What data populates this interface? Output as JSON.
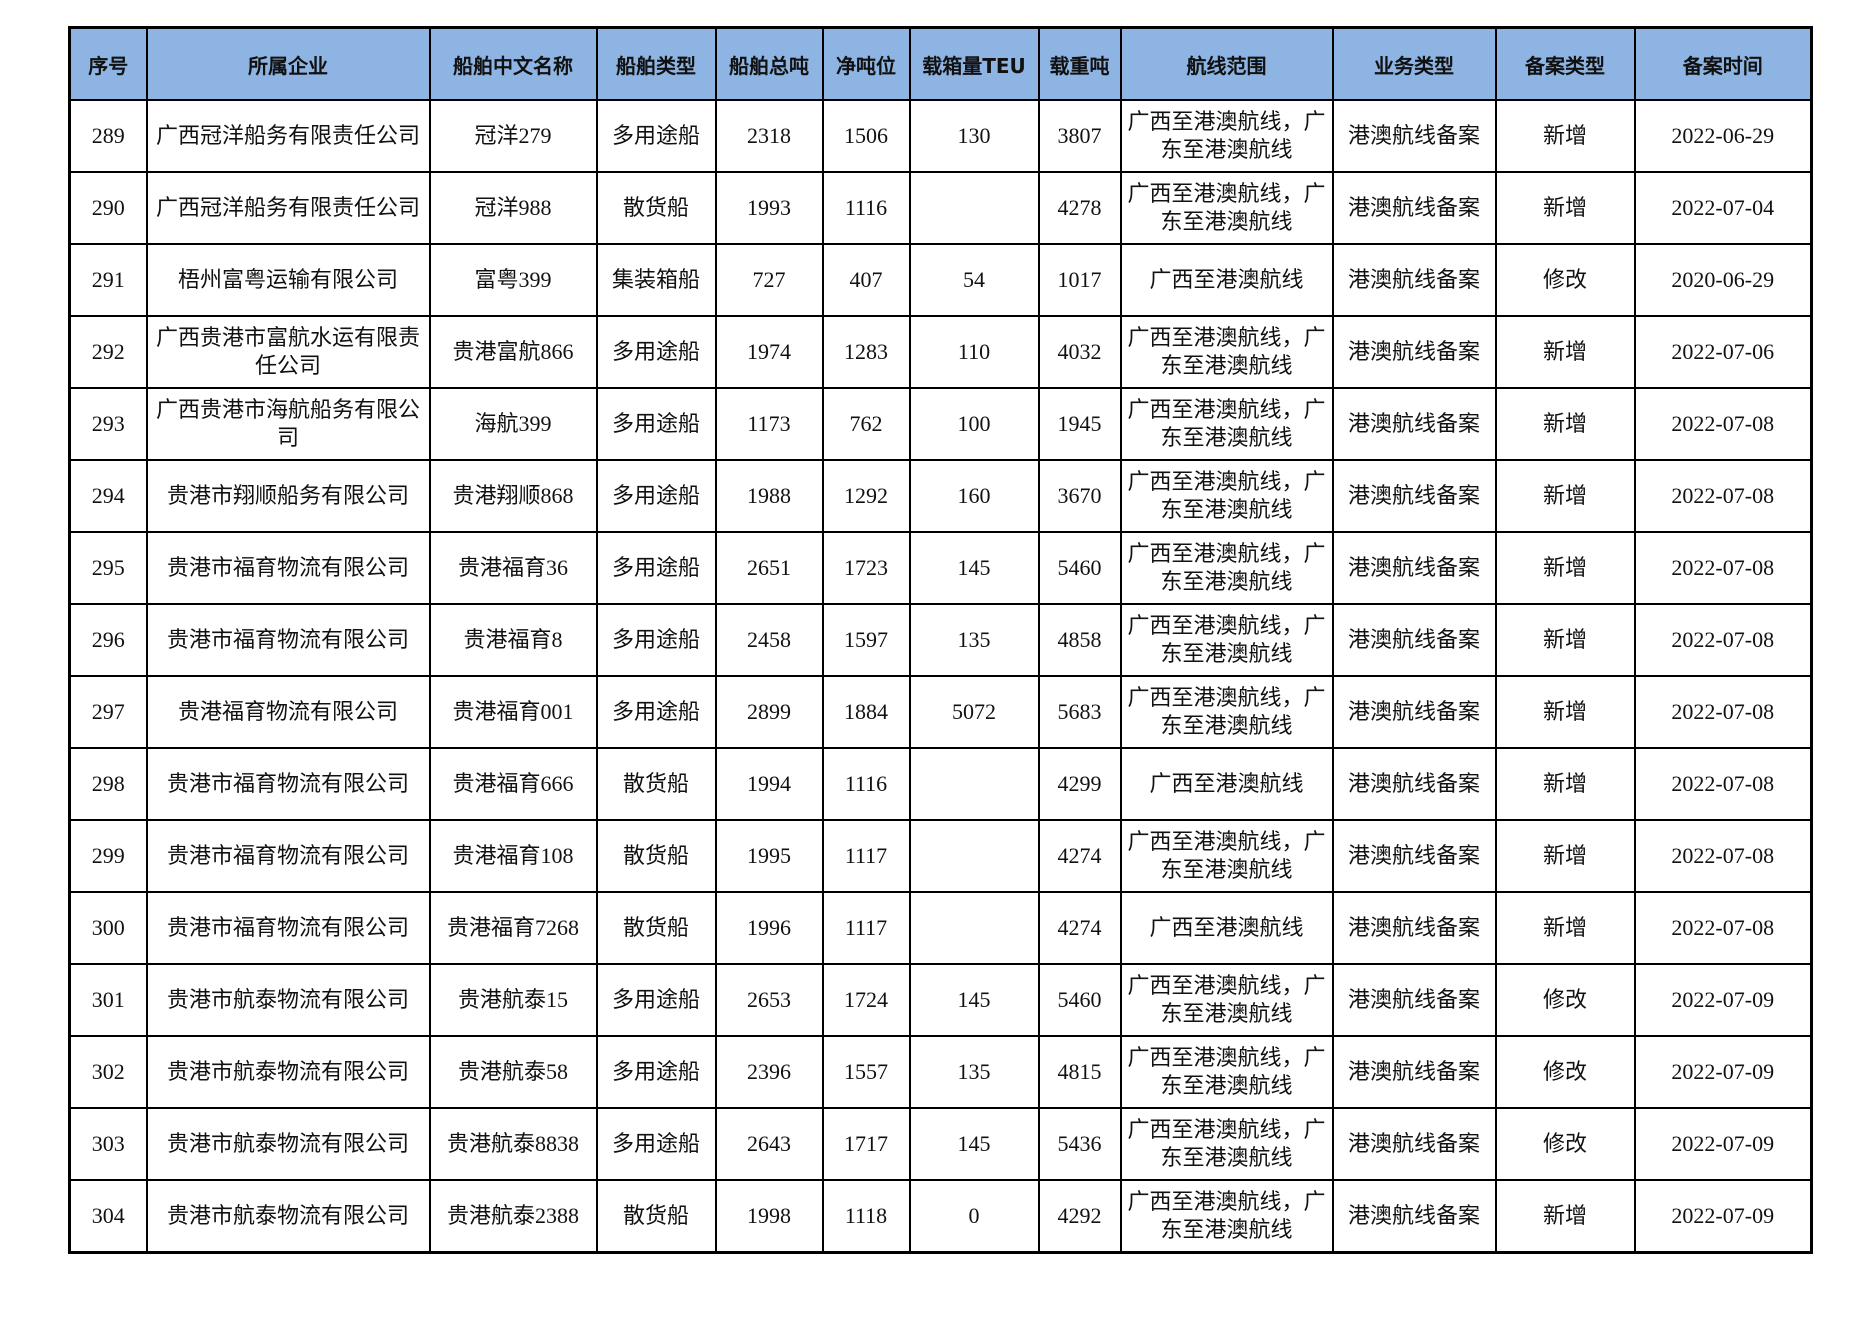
{
  "header_color": "#8DB4E2",
  "columns": [
    "序号",
    "所属企业",
    "船舶中文名称",
    "船舶类型",
    "船舶总吨",
    "净吨位",
    "载箱量TEU",
    "载重吨",
    "航线范围",
    "业务类型",
    "备案类型",
    "备案时间"
  ],
  "rows": [
    [
      "289",
      "广西冠洋船务有限责任公司",
      "冠洋279",
      "多用途船",
      "2318",
      "1506",
      "130",
      "3807",
      "广西至港澳航线，广东至港澳航线",
      "港澳航线备案",
      "新增",
      "2022-06-29"
    ],
    [
      "290",
      "广西冠洋船务有限责任公司",
      "冠洋988",
      "散货船",
      "1993",
      "1116",
      "",
      "4278",
      "广西至港澳航线，广东至港澳航线",
      "港澳航线备案",
      "新增",
      "2022-07-04"
    ],
    [
      "291",
      "梧州富粤运输有限公司",
      "富粤399",
      "集装箱船",
      "727",
      "407",
      "54",
      "1017",
      "广西至港澳航线",
      "港澳航线备案",
      "修改",
      "2020-06-29"
    ],
    [
      "292",
      "广西贵港市富航水运有限责任公司",
      "贵港富航866",
      "多用途船",
      "1974",
      "1283",
      "110",
      "4032",
      "广西至港澳航线，广东至港澳航线",
      "港澳航线备案",
      "新增",
      "2022-07-06"
    ],
    [
      "293",
      "广西贵港市海航船务有限公司",
      "海航399",
      "多用途船",
      "1173",
      "762",
      "100",
      "1945",
      "广西至港澳航线，广东至港澳航线",
      "港澳航线备案",
      "新增",
      "2022-07-08"
    ],
    [
      "294",
      "贵港市翔顺船务有限公司",
      "贵港翔顺868",
      "多用途船",
      "1988",
      "1292",
      "160",
      "3670",
      "广西至港澳航线，广东至港澳航线",
      "港澳航线备案",
      "新增",
      "2022-07-08"
    ],
    [
      "295",
      "贵港市福育物流有限公司",
      "贵港福育36",
      "多用途船",
      "2651",
      "1723",
      "145",
      "5460",
      "广西至港澳航线，广东至港澳航线",
      "港澳航线备案",
      "新增",
      "2022-07-08"
    ],
    [
      "296",
      "贵港市福育物流有限公司",
      "贵港福育8",
      "多用途船",
      "2458",
      "1597",
      "135",
      "4858",
      "广西至港澳航线，广东至港澳航线",
      "港澳航线备案",
      "新增",
      "2022-07-08"
    ],
    [
      "297",
      "贵港福育物流有限公司",
      "贵港福育001",
      "多用途船",
      "2899",
      "1884",
      "5072",
      "5683",
      "广西至港澳航线，广东至港澳航线",
      "港澳航线备案",
      "新增",
      "2022-07-08"
    ],
    [
      "298",
      "贵港市福育物流有限公司",
      "贵港福育666",
      "散货船",
      "1994",
      "1116",
      "",
      "4299",
      "广西至港澳航线",
      "港澳航线备案",
      "新增",
      "2022-07-08"
    ],
    [
      "299",
      "贵港市福育物流有限公司",
      "贵港福育108",
      "散货船",
      "1995",
      "1117",
      "",
      "4274",
      "广西至港澳航线，广东至港澳航线",
      "港澳航线备案",
      "新增",
      "2022-07-08"
    ],
    [
      "300",
      "贵港市福育物流有限公司",
      "贵港福育7268",
      "散货船",
      "1996",
      "1117",
      "",
      "4274",
      "广西至港澳航线",
      "港澳航线备案",
      "新增",
      "2022-07-08"
    ],
    [
      "301",
      "贵港市航泰物流有限公司",
      "贵港航泰15",
      "多用途船",
      "2653",
      "1724",
      "145",
      "5460",
      "广西至港澳航线，广东至港澳航线",
      "港澳航线备案",
      "修改",
      "2022-07-09"
    ],
    [
      "302",
      "贵港市航泰物流有限公司",
      "贵港航泰58",
      "多用途船",
      "2396",
      "1557",
      "135",
      "4815",
      "广西至港澳航线，广东至港澳航线",
      "港澳航线备案",
      "修改",
      "2022-07-09"
    ],
    [
      "303",
      "贵港市航泰物流有限公司",
      "贵港航泰8838",
      "多用途船",
      "2643",
      "1717",
      "145",
      "5436",
      "广西至港澳航线，广东至港澳航线",
      "港澳航线备案",
      "修改",
      "2022-07-09"
    ],
    [
      "304",
      "贵港市航泰物流有限公司",
      "贵港航泰2388",
      "散货船",
      "1998",
      "1118",
      "0",
      "4292",
      "广西至港澳航线，广东至港澳航线",
      "港澳航线备案",
      "新增",
      "2022-07-09"
    ]
  ]
}
